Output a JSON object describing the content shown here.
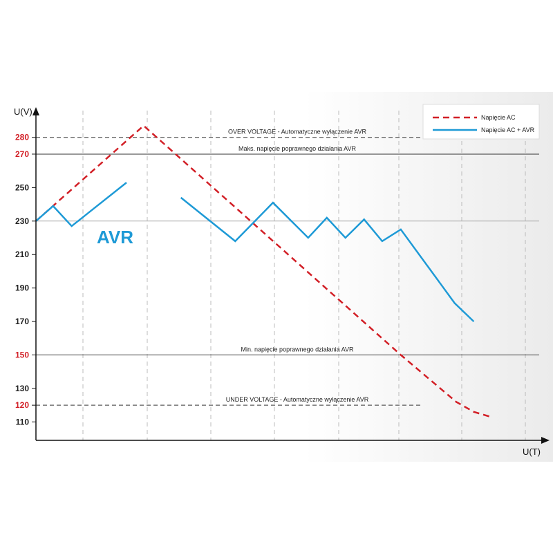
{
  "chart_data": {
    "type": "line",
    "y_label": "U(V)",
    "x_label": "U(T)",
    "annotation": "AVR",
    "xlim": [
      0,
      100
    ],
    "ylim": [
      99,
      296
    ],
    "yticks": [
      110,
      120,
      130,
      150,
      170,
      190,
      210,
      230,
      250,
      270,
      280
    ],
    "ytick_colors": [
      "#222222",
      "#d21f26",
      "#222222",
      "#d21f26",
      "#222222",
      "#222222",
      "#222222",
      "#222222",
      "#222222",
      "#d21f26",
      "#d21f26"
    ],
    "reference_lines": [
      {
        "value": 280,
        "label": "OVER VOLTAGE - Automatyczne wyłączenie AVR",
        "style": "dashed"
      },
      {
        "value": 270,
        "label": "Maks. napięcie poprawnego działania AVR",
        "style": "solid"
      },
      {
        "value": 230,
        "style": "gray"
      },
      {
        "value": 150,
        "label": "Min. napięcie poprawnego działania AVR",
        "style": "solid"
      },
      {
        "value": 120,
        "label": "UNDER VOLTAGE - Automatyczne wyłączenie AVR",
        "style": "dashed"
      }
    ],
    "series": [
      {
        "name": "Napięcie AC",
        "color": "#d21f26",
        "dashed": true,
        "x": [
          0,
          21.4,
          72.5,
          83.5,
          87,
          90.4
        ],
        "values": [
          230,
          287,
          150,
          122,
          116,
          113
        ]
      },
      {
        "name": "Napięcie AC  + AVR",
        "color": "#1e9ad6",
        "dashed": false,
        "x": [
          0,
          3.4,
          7.1,
          18,
          null,
          28.8,
          39.6,
          47.1,
          54.1,
          57.8,
          61.5,
          65.2,
          68.8,
          72.5,
          83.2,
          87
        ],
        "values": [
          230,
          239,
          227,
          253,
          null,
          244,
          218,
          241,
          220,
          232,
          220,
          231,
          218,
          225,
          181,
          170
        ]
      }
    ]
  }
}
